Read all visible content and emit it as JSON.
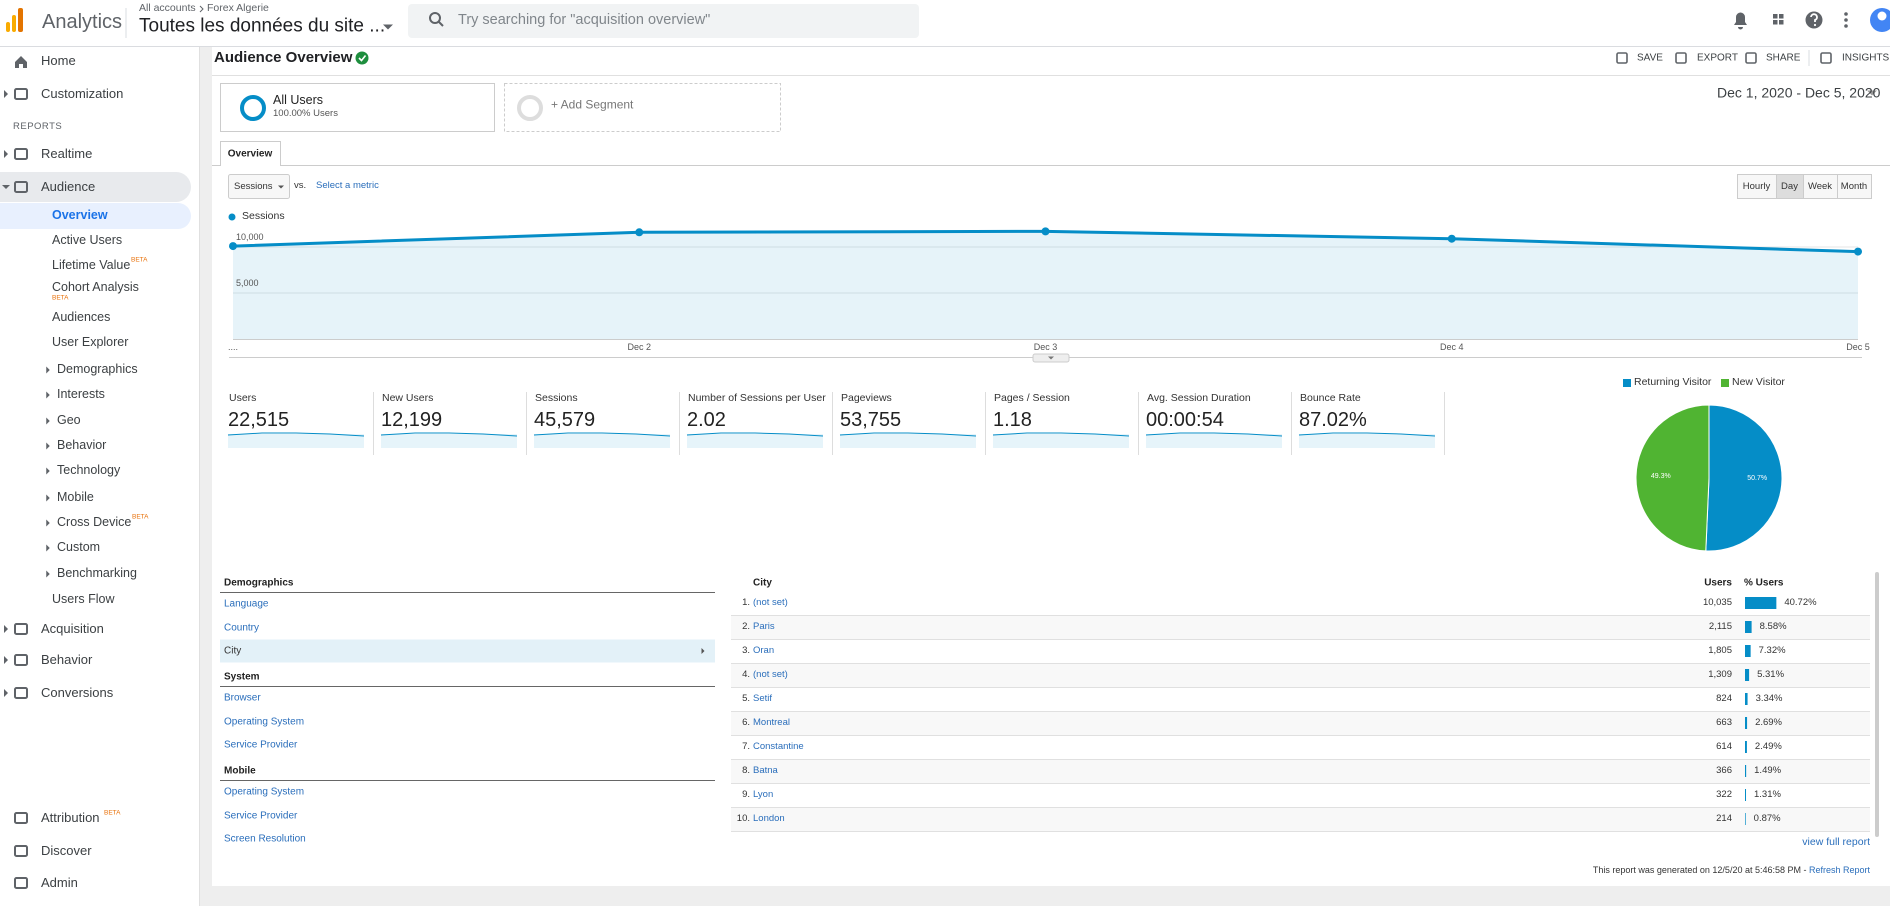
{
  "header": {
    "product": "Analytics",
    "breadcrumb": [
      "All accounts",
      "Forex Algerie"
    ],
    "property": "Toutes les données du site ...",
    "search_placeholder": "Try searching for \"acquisition overview\""
  },
  "sidebar": {
    "top": [
      "Home",
      "Customization"
    ],
    "section": "REPORTS",
    "reports": [
      {
        "label": "Realtime"
      },
      {
        "label": "Audience",
        "children": [
          {
            "label": "Overview"
          },
          {
            "label": "Active Users"
          },
          {
            "label": "Lifetime Value",
            "badge": "BETA"
          },
          {
            "label": "Cohort Analysis",
            "badge": "BETA"
          },
          {
            "label": "Audiences"
          },
          {
            "label": "User Explorer"
          },
          {
            "label": "Demographics"
          },
          {
            "label": "Interests"
          },
          {
            "label": "Geo"
          },
          {
            "label": "Behavior"
          },
          {
            "label": "Technology"
          },
          {
            "label": "Mobile"
          },
          {
            "label": "Cross Device",
            "badge": "BETA"
          },
          {
            "label": "Custom"
          },
          {
            "label": "Benchmarking"
          },
          {
            "label": "Users Flow"
          }
        ]
      },
      {
        "label": "Acquisition"
      },
      {
        "label": "Behavior"
      },
      {
        "label": "Conversions"
      }
    ],
    "bottom": [
      {
        "label": "Attribution",
        "badge": "BETA"
      },
      {
        "label": "Discover"
      },
      {
        "label": "Admin"
      }
    ]
  },
  "toolbar": {
    "title": "Audience Overview",
    "actions": [
      "SAVE",
      "EXPORT",
      "SHARE",
      "INSIGHTS"
    ]
  },
  "segments": [
    {
      "name": "All Users",
      "detail": "100.00% Users"
    },
    {
      "name": "+ Add Segment"
    }
  ],
  "date_range": "Dec 1, 2020 - Dec 5, 2020",
  "tab": "Overview",
  "metric_picker": {
    "metric": "Sessions",
    "vs": "vs.",
    "compare": "Select a metric"
  },
  "granularity": {
    "options": [
      "Hourly",
      "Day",
      "Week",
      "Month"
    ],
    "selected_index": 1
  },
  "sessions_chart": {
    "type": "line",
    "legend": "Sessions",
    "categories": [
      "....",
      "Dec 2",
      "Dec 3",
      "Dec 4",
      "Dec 5"
    ],
    "values": [
      10100,
      11600,
      11700,
      10900,
      9500
    ],
    "color": "#058dc7",
    "ylim": [
      0,
      12500
    ],
    "yticks": [
      {
        "value": 5000,
        "label": "5,000"
      },
      {
        "value": 10000,
        "label": "10,000"
      }
    ],
    "grid": true
  },
  "metrics": [
    {
      "label": "Users",
      "value": "22,515"
    },
    {
      "label": "New Users",
      "value": "12,199"
    },
    {
      "label": "Sessions",
      "value": "45,579"
    },
    {
      "label": "Number of Sessions per User",
      "value": "2.02"
    },
    {
      "label": "Pageviews",
      "value": "53,755"
    },
    {
      "label": "Pages / Session",
      "value": "1.18"
    },
    {
      "label": "Avg. Session Duration",
      "value": "00:00:54"
    },
    {
      "label": "Bounce Rate",
      "value": "87.02%"
    }
  ],
  "visitor_pie": {
    "type": "pie",
    "categories": [
      "Returning Visitor",
      "New Visitor"
    ],
    "values": [
      50.7,
      49.3
    ],
    "value_labels": [
      "50.7%",
      "49.3%"
    ],
    "colors": [
      "#058dc7",
      "#50b432"
    ]
  },
  "dimensions": [
    {
      "heading": "Demographics",
      "items": [
        "Language",
        "Country",
        "City"
      ],
      "selected_index": 2
    },
    {
      "heading": "System",
      "items": [
        "Browser",
        "Operating System",
        "Service Provider"
      ]
    },
    {
      "heading": "Mobile",
      "items": [
        "Operating System",
        "Service Provider",
        "Screen Resolution"
      ]
    }
  ],
  "table": {
    "columns": [
      "City",
      "Users",
      "% Users"
    ],
    "rows": [
      {
        "rank": "1.",
        "city": "(not set)",
        "users": "10,035",
        "share": 40.72,
        "share_label": "40.72%"
      },
      {
        "rank": "2.",
        "city": "Paris",
        "users": "2,115",
        "share": 8.58,
        "share_label": "8.58%"
      },
      {
        "rank": "3.",
        "city": "Oran",
        "users": "1,805",
        "share": 7.32,
        "share_label": "7.32%"
      },
      {
        "rank": "4.",
        "city": "(not set)",
        "users": "1,309",
        "share": 5.31,
        "share_label": "5.31%"
      },
      {
        "rank": "5.",
        "city": "Setif",
        "users": "824",
        "share": 3.34,
        "share_label": "3.34%"
      },
      {
        "rank": "6.",
        "city": "Montreal",
        "users": "663",
        "share": 2.69,
        "share_label": "2.69%"
      },
      {
        "rank": "7.",
        "city": "Constantine",
        "users": "614",
        "share": 2.49,
        "share_label": "2.49%"
      },
      {
        "rank": "8.",
        "city": "Batna",
        "users": "366",
        "share": 1.49,
        "share_label": "1.49%"
      },
      {
        "rank": "9.",
        "city": "Lyon",
        "users": "322",
        "share": 1.31,
        "share_label": "1.31%"
      },
      {
        "rank": "10.",
        "city": "London",
        "users": "214",
        "share": 0.87,
        "share_label": "0.87%"
      }
    ]
  },
  "footer": {
    "link": "view full report",
    "generated": "This report was generated on 12/5/20 at 5:46:58 PM - ",
    "refresh": "Refresh Report"
  }
}
